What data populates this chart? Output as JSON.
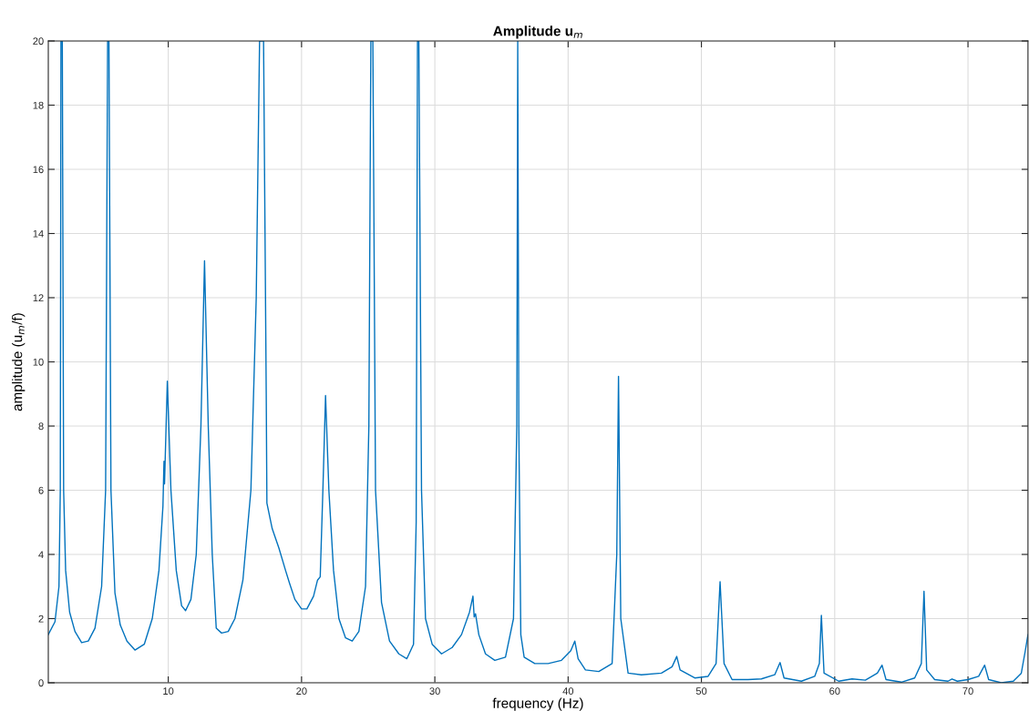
{
  "chart_data": {
    "type": "line",
    "title": "Amplitude u$_{m}$",
    "xlabel": "frequency (Hz)",
    "ylabel": "amplitude (u$_{m}$/f)",
    "xlim": [
      1,
      74.5
    ],
    "ylim": [
      0,
      20
    ],
    "xticks": [
      10,
      20,
      30,
      40,
      50,
      60,
      70
    ],
    "yticks": [
      0,
      2,
      4,
      6,
      8,
      10,
      12,
      14,
      16,
      18,
      20
    ],
    "grid": true,
    "series": [
      {
        "color": "#0072bd",
        "x": [
          1.0,
          1.5,
          1.8,
          1.9,
          1.95,
          2.05,
          2.15,
          2.3,
          2.6,
          3.0,
          3.5,
          4.0,
          4.5,
          5.0,
          5.3,
          5.45,
          5.55,
          5.7,
          6.0,
          6.4,
          6.9,
          7.5,
          8.2,
          8.8,
          9.3,
          9.6,
          9.68,
          9.72,
          9.93,
          10.2,
          10.6,
          11.0,
          11.3,
          11.7,
          12.1,
          12.45,
          12.72,
          13.0,
          13.3,
          13.6,
          14.0,
          14.5,
          15.0,
          15.6,
          16.2,
          16.6,
          16.85,
          17.15,
          17.35,
          17.4,
          17.8,
          18.3,
          18.8,
          19.1,
          19.5,
          20.0,
          20.4,
          20.9,
          21.2,
          21.4,
          21.6,
          21.8,
          22.05,
          22.4,
          22.8,
          23.3,
          23.8,
          24.3,
          24.8,
          25.05,
          25.2,
          25.35,
          25.55,
          26.0,
          26.6,
          27.3,
          27.9,
          28.4,
          28.6,
          28.7,
          28.8,
          29.0,
          29.3,
          29.8,
          30.5,
          31.3,
          32.0,
          32.6,
          32.86,
          32.95,
          33.05,
          33.3,
          33.8,
          34.5,
          35.3,
          35.9,
          36.15,
          36.22,
          36.3,
          36.45,
          36.7,
          37.5,
          38.5,
          39.5,
          40.2,
          40.5,
          40.75,
          41.3,
          42.3,
          43.3,
          43.65,
          43.78,
          43.95,
          44.5,
          45.5,
          47.0,
          47.8,
          48.15,
          48.4,
          49.5,
          50.5,
          51.1,
          51.4,
          51.7,
          52.3,
          53.5,
          54.5,
          55.5,
          55.9,
          56.2,
          57.5,
          58.5,
          58.85,
          59.0,
          59.2,
          60.3,
          61.3,
          62.3,
          63.2,
          63.55,
          63.85,
          65.0,
          66.0,
          66.5,
          66.7,
          66.9,
          67.5,
          68.5,
          68.8,
          69.2,
          70.0,
          70.8,
          71.25,
          71.55,
          72.5,
          73.4,
          74.0,
          74.3,
          74.5
        ],
        "values": [
          1.5,
          1.9,
          3.0,
          6.0,
          20,
          20,
          6.0,
          3.5,
          2.2,
          1.6,
          1.25,
          1.3,
          1.7,
          3.0,
          6.0,
          20,
          20,
          6.0,
          2.8,
          1.8,
          1.3,
          1.02,
          1.2,
          2.0,
          3.5,
          5.5,
          6.9,
          6.2,
          9.4,
          6.0,
          3.5,
          2.4,
          2.25,
          2.6,
          4.0,
          8.0,
          13.15,
          8.0,
          4.0,
          1.7,
          1.55,
          1.6,
          2.0,
          3.2,
          6.0,
          12.0,
          20,
          20,
          9.0,
          5.6,
          4.8,
          4.2,
          3.5,
          3.1,
          2.6,
          2.3,
          2.3,
          2.7,
          3.2,
          3.3,
          6.0,
          8.95,
          6.0,
          3.5,
          2.0,
          1.4,
          1.3,
          1.6,
          3.0,
          8.0,
          20,
          20,
          6.0,
          2.5,
          1.3,
          0.9,
          0.75,
          1.2,
          5.0,
          20,
          20,
          6.0,
          2.0,
          1.2,
          0.9,
          1.1,
          1.5,
          2.2,
          2.7,
          2.05,
          2.15,
          1.5,
          0.9,
          0.7,
          0.8,
          2.0,
          8.0,
          20,
          8.0,
          1.5,
          0.8,
          0.6,
          0.6,
          0.7,
          1.0,
          1.3,
          0.75,
          0.4,
          0.35,
          0.6,
          4.0,
          9.55,
          2.0,
          0.3,
          0.25,
          0.3,
          0.5,
          0.82,
          0.4,
          0.15,
          0.2,
          0.6,
          3.15,
          0.6,
          0.1,
          0.1,
          0.12,
          0.25,
          0.63,
          0.15,
          0.05,
          0.2,
          0.6,
          2.1,
          0.3,
          0.05,
          0.12,
          0.08,
          0.3,
          0.55,
          0.1,
          0.02,
          0.15,
          0.6,
          2.85,
          0.4,
          0.1,
          0.05,
          0.12,
          0.05,
          0.1,
          0.2,
          0.55,
          0.1,
          0.0,
          0.05,
          0.3,
          1.0,
          1.5
        ]
      }
    ]
  }
}
